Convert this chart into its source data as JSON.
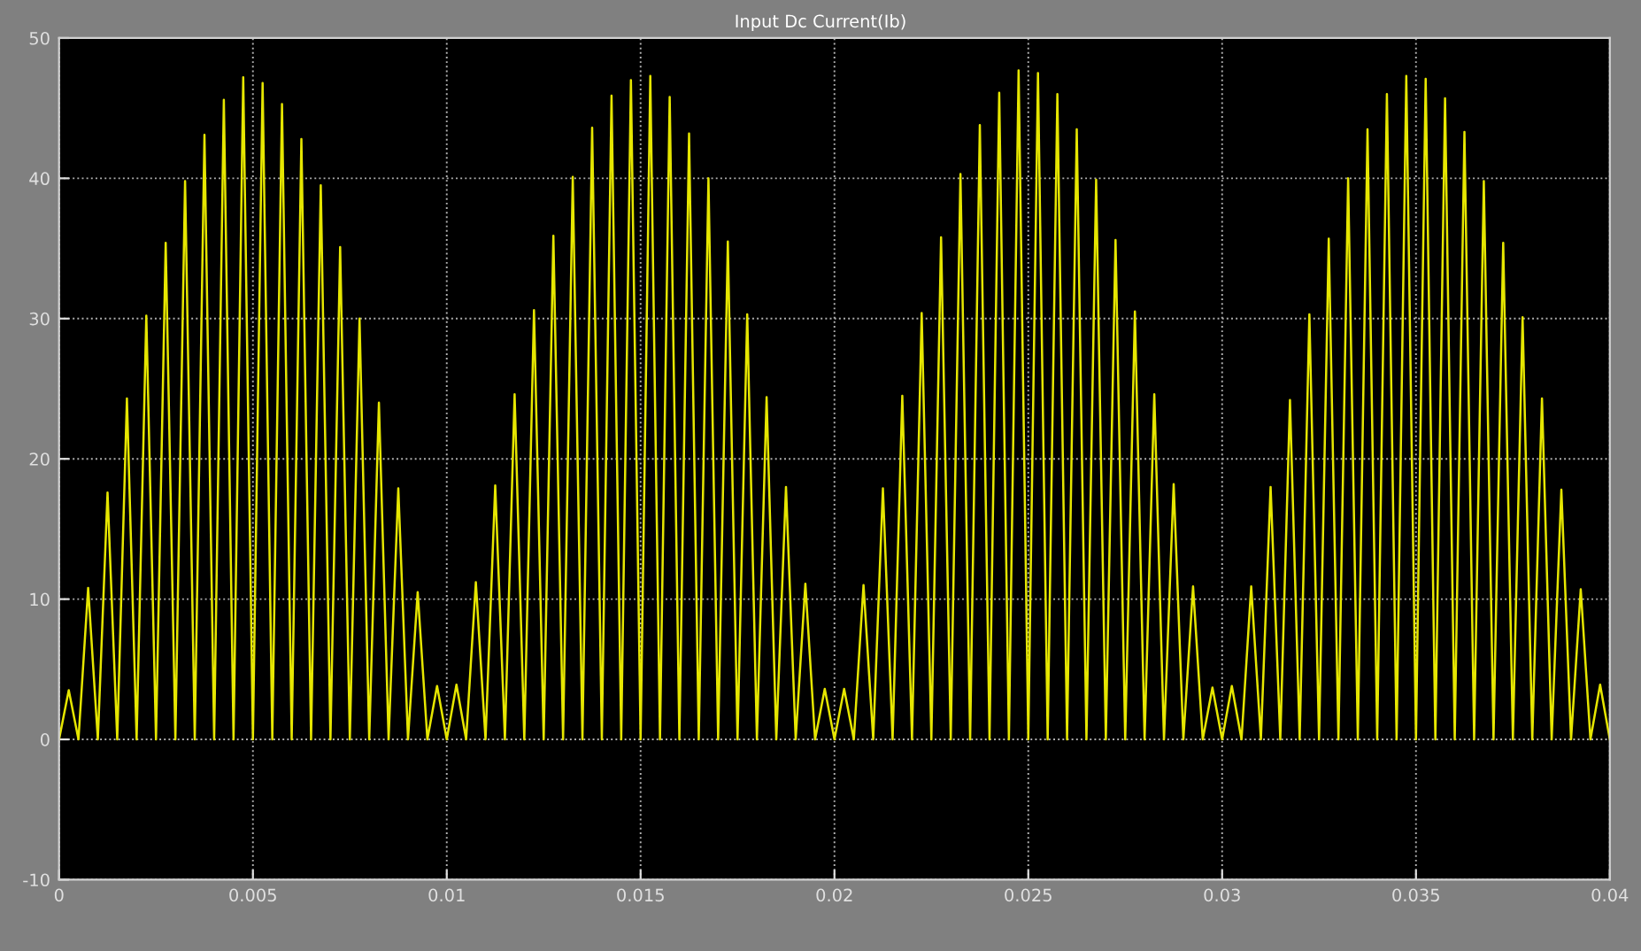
{
  "chart_data": {
    "type": "line",
    "title": "Input Dc Current(Ib)",
    "xlim": [
      0,
      0.04
    ],
    "xticks": [
      0,
      0.005,
      0.01,
      0.015,
      0.02,
      0.025,
      0.03,
      0.035,
      0.04
    ],
    "ylim": [
      -10,
      50
    ],
    "yticks": [
      -10,
      0,
      10,
      20,
      30,
      40,
      50
    ],
    "grid": true,
    "marker": "none",
    "line_style": "solid",
    "x": [
      0,
      0.00025,
      0.0005,
      0.00075,
      0.001,
      0.00125,
      0.0015,
      0.00175,
      0.002,
      0.00225,
      0.0025,
      0.00275,
      0.003,
      0.00325,
      0.0035,
      0.00375,
      0.004,
      0.00425,
      0.0045,
      0.00475,
      0.005,
      0.00525,
      0.0055,
      0.00575,
      0.006,
      0.00625,
      0.0065,
      0.00675,
      0.007,
      0.00725,
      0.0075,
      0.00775,
      0.008,
      0.00825,
      0.0085,
      0.00875,
      0.009,
      0.00925,
      0.0095,
      0.00975,
      0.01,
      0.01025,
      0.0105,
      0.01075,
      0.011,
      0.01125,
      0.0115,
      0.01175,
      0.012,
      0.01225,
      0.0125,
      0.01275,
      0.013,
      0.01325,
      0.0135,
      0.01375,
      0.014,
      0.01425,
      0.0145,
      0.01475,
      0.015,
      0.01525,
      0.0155,
      0.01575,
      0.016,
      0.01625,
      0.0165,
      0.01675,
      0.017,
      0.01725,
      0.0175,
      0.01775,
      0.018,
      0.01825,
      0.0185,
      0.01875,
      0.019,
      0.01925,
      0.0195,
      0.01975,
      0.02,
      0.02025,
      0.0205,
      0.02075,
      0.021,
      0.02125,
      0.0215,
      0.02175,
      0.022,
      0.02225,
      0.0225,
      0.02275,
      0.023,
      0.02325,
      0.0235,
      0.02375,
      0.024,
      0.02425,
      0.0245,
      0.02475,
      0.025,
      0.02525,
      0.0255,
      0.02575,
      0.026,
      0.02625,
      0.0265,
      0.02675,
      0.027,
      0.02725,
      0.0275,
      0.02775,
      0.028,
      0.02825,
      0.0285,
      0.02875,
      0.029,
      0.02925,
      0.0295,
      0.02975,
      0.03,
      0.03025,
      0.0305,
      0.03075,
      0.031,
      0.03125,
      0.0315,
      0.03175,
      0.032,
      0.03225,
      0.0325,
      0.03275,
      0.033,
      0.03325,
      0.0335,
      0.03375,
      0.034,
      0.03425,
      0.0345,
      0.03475,
      0.035,
      0.03525,
      0.0355,
      0.03575,
      0.036,
      0.03625,
      0.0365,
      0.03675,
      0.037,
      0.03725,
      0.0375,
      0.03775,
      0.038,
      0.03825,
      0.0385,
      0.03875,
      0.039,
      0.03925,
      0.0395,
      0.03975,
      0.04
    ],
    "series": [
      {
        "color": "#e6e600",
        "values": [
          0,
          3.5,
          0,
          10.8,
          0,
          17.6,
          0,
          24.3,
          0,
          30.2,
          0,
          35.4,
          0,
          39.8,
          0,
          43.1,
          0,
          45.6,
          0,
          47.2,
          0,
          46.8,
          0,
          45.3,
          0,
          42.8,
          0,
          39.5,
          0,
          35.1,
          0,
          30.0,
          0,
          24.0,
          0,
          17.9,
          0,
          10.5,
          0,
          3.8,
          0,
          3.9,
          0,
          11.2,
          0,
          18.1,
          0,
          24.6,
          0,
          30.6,
          0,
          35.9,
          0,
          40.1,
          0,
          43.6,
          0,
          45.9,
          0,
          47.0,
          0,
          47.3,
          0,
          45.8,
          0,
          43.2,
          0,
          40.0,
          0,
          35.5,
          0,
          30.3,
          0,
          24.4,
          0,
          18.0,
          0,
          11.1,
          0,
          3.6,
          0,
          3.6,
          0,
          11.0,
          0,
          17.9,
          0,
          24.5,
          0,
          30.4,
          0,
          35.8,
          0,
          40.3,
          0,
          43.8,
          0,
          46.1,
          0,
          47.7,
          0,
          47.5,
          0,
          46.0,
          0,
          43.5,
          0,
          39.9,
          0,
          35.6,
          0,
          30.5,
          0,
          24.6,
          0,
          18.2,
          0,
          10.9,
          0,
          3.7,
          0,
          3.8,
          0,
          10.9,
          0,
          18.0,
          0,
          24.2,
          0,
          30.3,
          0,
          35.7,
          0,
          40.0,
          0,
          43.5,
          0,
          46.0,
          0,
          47.3,
          0,
          47.1,
          0,
          45.7,
          0,
          43.3,
          0,
          39.8,
          0,
          35.4,
          0,
          30.1,
          0,
          24.3,
          0,
          17.8,
          0,
          10.7,
          0,
          3.9,
          0
        ]
      }
    ]
  }
}
